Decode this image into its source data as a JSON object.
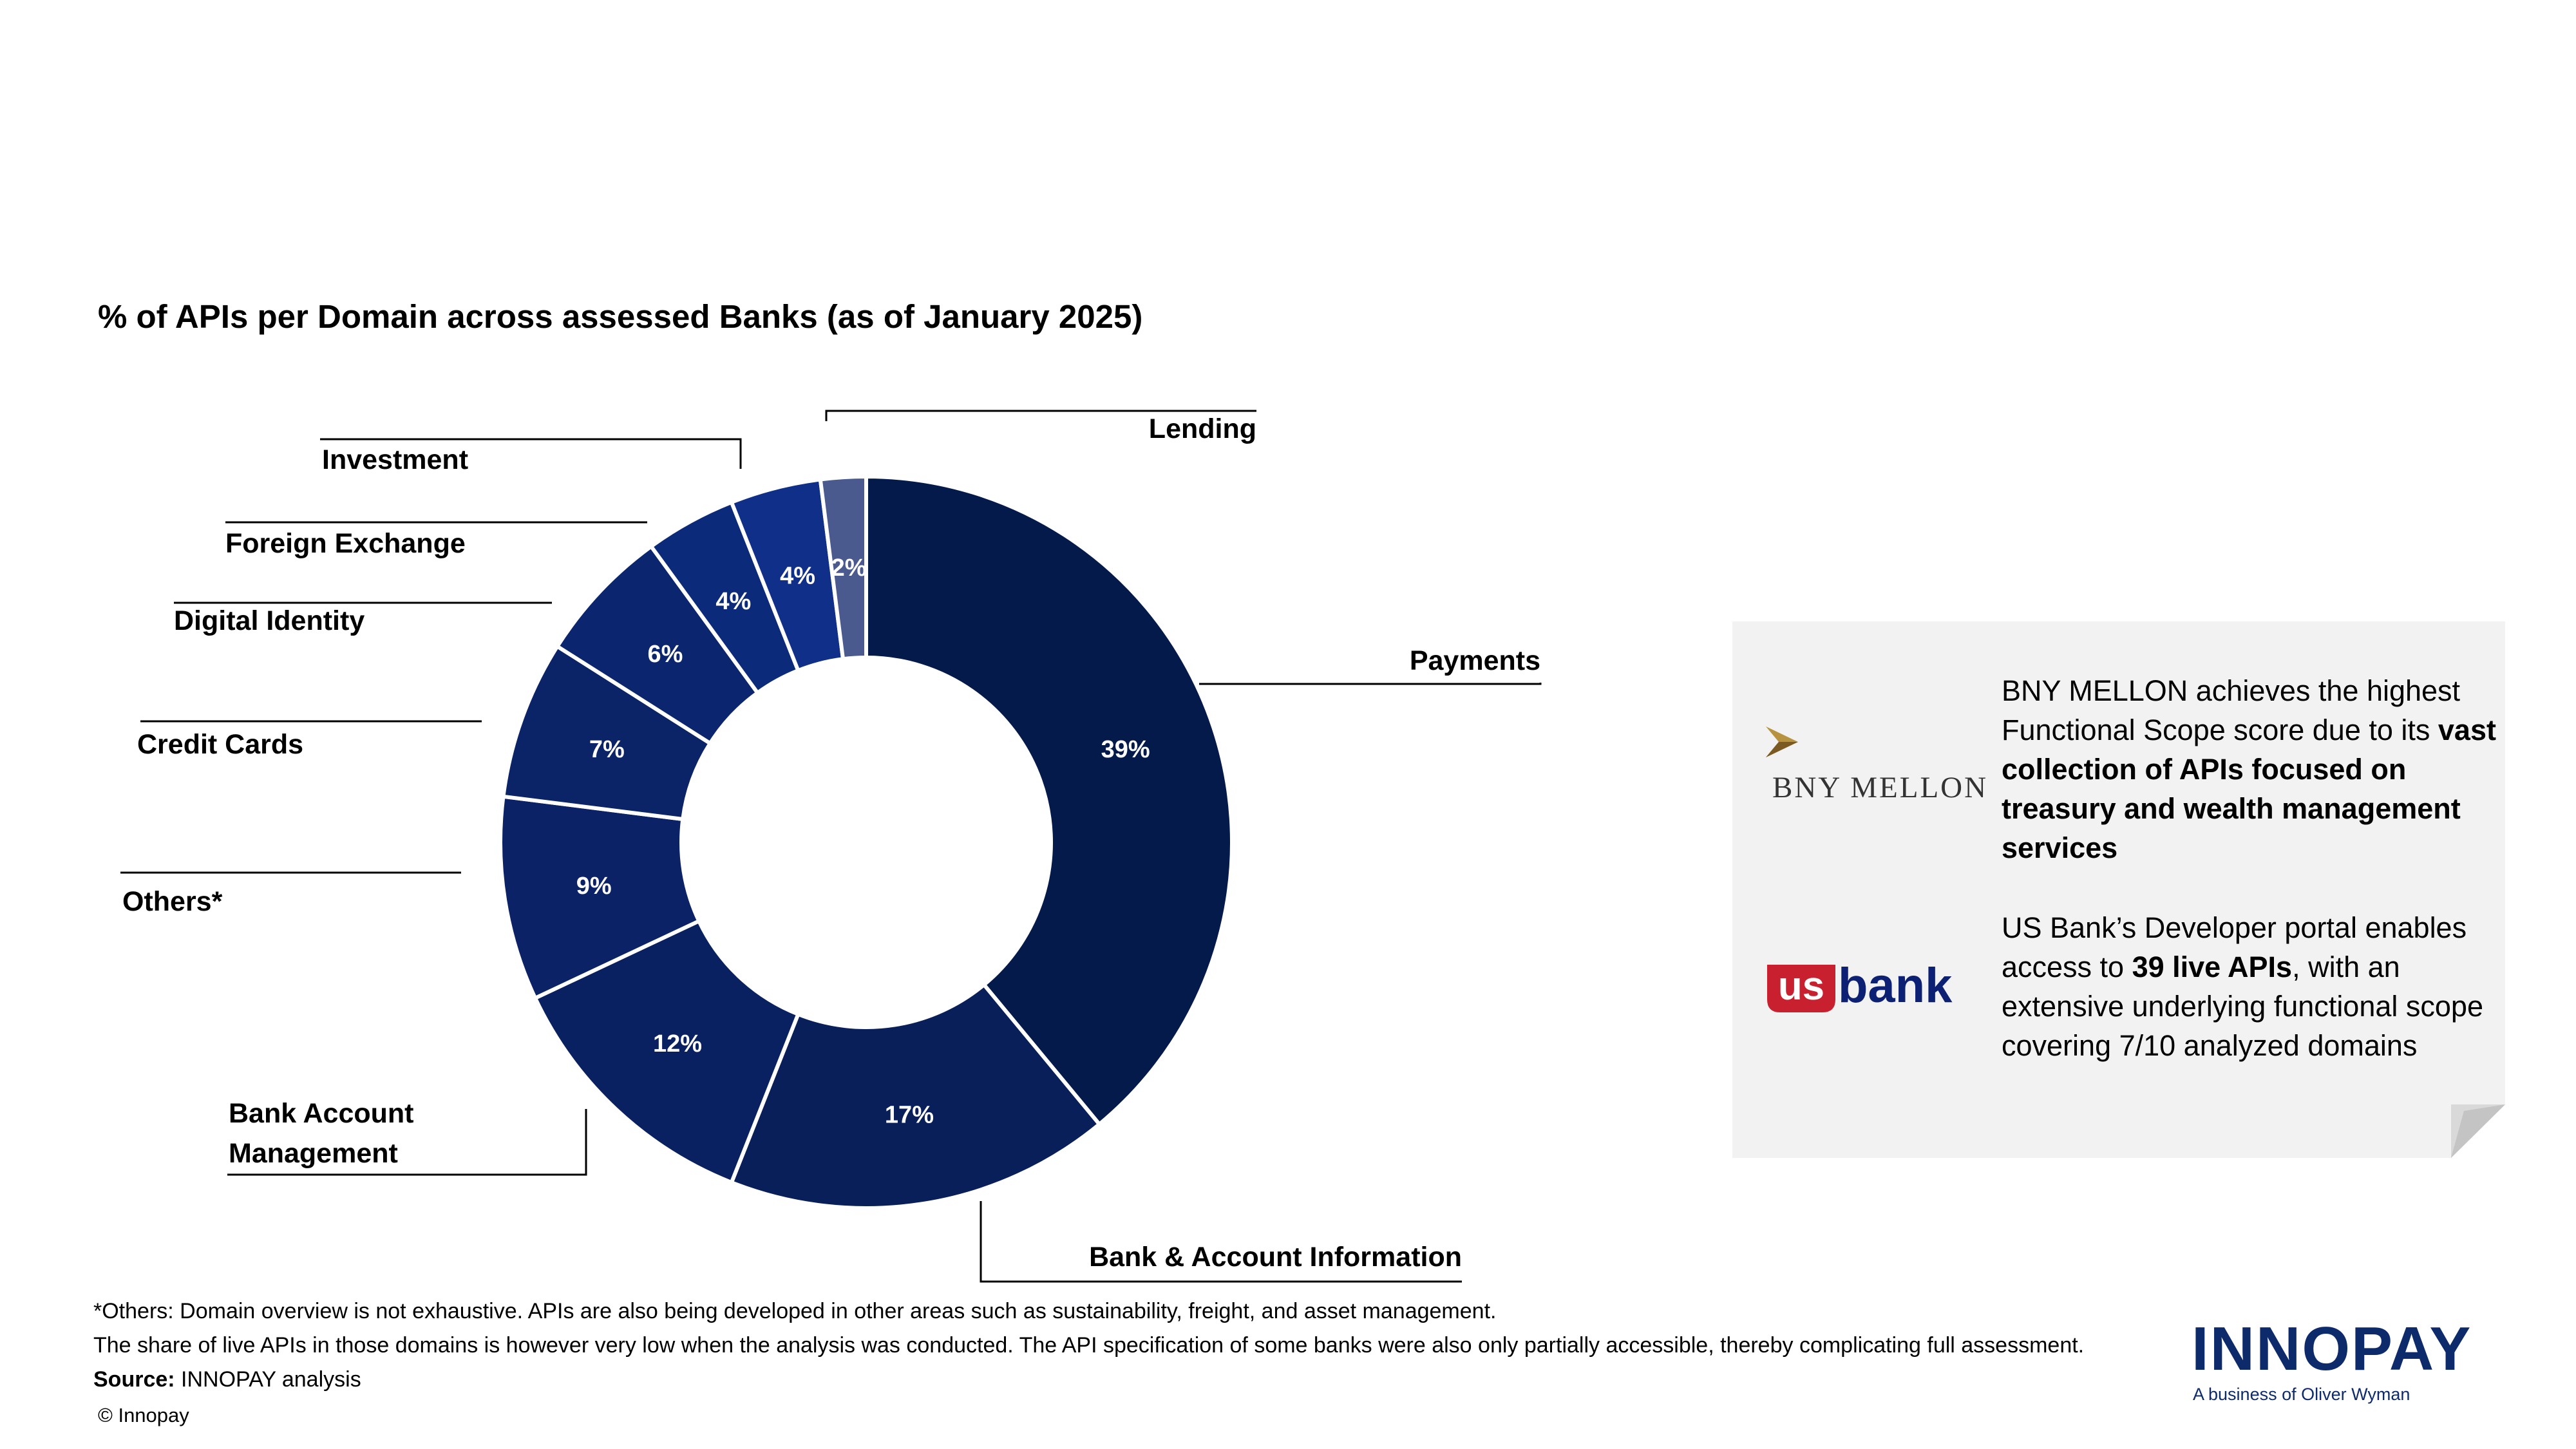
{
  "title": "% of APIs per Domain across assessed Banks (as of January 2025)",
  "chart_data": {
    "type": "pie",
    "variant": "donut",
    "categories": [
      "Payments",
      "Bank & Account Information",
      "Bank Account Management",
      "Others*",
      "Credit Cards",
      "Digital Identity",
      "Foreign Exchange",
      "Investment",
      "Lending"
    ],
    "values": [
      39,
      17,
      12,
      9,
      7,
      6,
      4,
      4,
      2
    ],
    "value_labels": [
      "39%",
      "17%",
      "12%",
      "9%",
      "7%",
      "6%",
      "4%",
      "4%",
      "2%"
    ],
    "colors": [
      "#041a4b",
      "#081f5a",
      "#0a2161",
      "#0b2366",
      "#0b2468",
      "#0b266e",
      "#0c2a7a",
      "#0f2f88",
      "#4a5a8f"
    ],
    "legend": "leader-line labels",
    "category_lines": [
      [
        "Payments"
      ],
      [
        "Bank & Account Information"
      ],
      [
        "Bank Account",
        "Management"
      ],
      [
        "Others*"
      ],
      [
        "Credit Cards"
      ],
      [
        "Digital Identity"
      ],
      [
        "Foreign Exchange"
      ],
      [
        "Investment"
      ],
      [
        "Lending"
      ]
    ]
  },
  "notes": {
    "bny": {
      "logo_text": "BNY MELLON",
      "text_plain": "BNY MELLON achieves the highest Functional Scope score due to its ",
      "text_bold": "vast collection of APIs focused on treasury and wealth management services",
      "colors": {
        "mark": "#b8933f",
        "mark_dark": "#7a5a22"
      }
    },
    "usbank": {
      "logo_text_us": "us",
      "logo_text_bank": "bank",
      "text_plain_1": "US Bank’s Developer portal enables access to ",
      "text_bold": "39 live APIs",
      "text_plain_2": ", with an extensive underlying functional scope covering 7/10 analyzed domains",
      "colors": {
        "us": "#c8202f",
        "bank": "#0c2074"
      }
    }
  },
  "footnotes": {
    "line1": "*Others: Domain overview is not exhaustive. APIs are also being developed in other areas such as sustainability, freight, and asset management.",
    "line2": "The share of live APIs in those domains is however very low when the analysis was conducted. The API specification of some banks were also only partially accessible, thereby complicating full assessment.",
    "source_label": "Source:",
    "source_text": " INNOPAY analysis",
    "copyright": "© Innopay"
  },
  "brand": {
    "logo": "INNOPAY",
    "tagline": "A business of Oliver Wyman",
    "color": "#0d2a6b"
  }
}
